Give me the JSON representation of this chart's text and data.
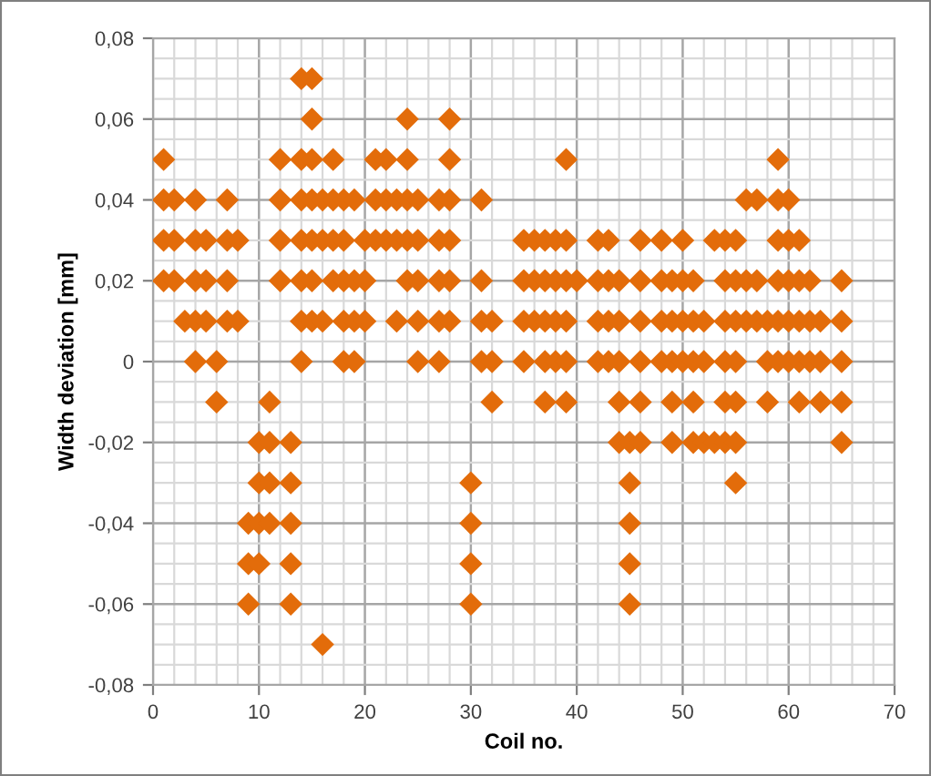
{
  "chart_data": {
    "type": "scatter",
    "xlabel": "Coil no.",
    "ylabel": "Width deviation [mm]",
    "x": [
      14,
      15,
      15,
      24,
      28,
      1,
      12,
      14,
      15,
      17,
      21,
      22,
      24,
      28,
      39,
      59,
      1,
      2,
      4,
      7,
      12,
      14,
      15,
      16,
      17,
      18,
      19,
      21,
      22,
      23,
      24,
      25,
      27,
      28,
      31,
      56,
      57,
      59,
      60,
      1,
      2,
      4,
      5,
      7,
      8,
      12,
      14,
      15,
      16,
      17,
      18,
      20,
      21,
      22,
      23,
      24,
      25,
      27,
      28,
      35,
      36,
      37,
      38,
      39,
      42,
      43,
      46,
      48,
      50,
      53,
      54,
      55,
      59,
      60,
      61,
      1,
      2,
      4,
      5,
      7,
      12,
      14,
      15,
      17,
      18,
      19,
      20,
      24,
      25,
      27,
      28,
      31,
      35,
      36,
      37,
      38,
      39,
      40,
      42,
      43,
      44,
      46,
      48,
      49,
      50,
      51,
      54,
      55,
      56,
      57,
      59,
      60,
      61,
      62,
      65,
      3,
      4,
      5,
      7,
      8,
      14,
      15,
      16,
      18,
      19,
      20,
      23,
      25,
      27,
      28,
      31,
      32,
      35,
      36,
      37,
      38,
      39,
      42,
      43,
      44,
      46,
      48,
      49,
      50,
      51,
      52,
      54,
      55,
      56,
      57,
      58,
      59,
      60,
      61,
      62,
      63,
      65,
      4,
      6,
      14,
      18,
      19,
      25,
      27,
      31,
      32,
      35,
      37,
      38,
      39,
      42,
      43,
      44,
      46,
      48,
      49,
      50,
      51,
      52,
      54,
      55,
      58,
      59,
      60,
      61,
      62,
      63,
      65,
      6,
      11,
      32,
      37,
      39,
      44,
      46,
      49,
      51,
      54,
      55,
      58,
      61,
      63,
      65,
      10,
      11,
      13,
      44,
      45,
      46,
      49,
      51,
      52,
      53,
      54,
      55,
      65,
      10,
      11,
      13,
      30,
      45,
      55,
      9,
      10,
      11,
      13,
      30,
      45,
      9,
      10,
      13,
      30,
      45,
      9,
      13,
      30,
      45,
      16
    ],
    "series": [
      {
        "color": "#e36c0a",
        "values": [
          0.07,
          0.07,
          0.06,
          0.06,
          0.06,
          0.05,
          0.05,
          0.05,
          0.05,
          0.05,
          0.05,
          0.05,
          0.05,
          0.05,
          0.05,
          0.05,
          0.04,
          0.04,
          0.04,
          0.04,
          0.04,
          0.04,
          0.04,
          0.04,
          0.04,
          0.04,
          0.04,
          0.04,
          0.04,
          0.04,
          0.04,
          0.04,
          0.04,
          0.04,
          0.04,
          0.04,
          0.04,
          0.04,
          0.04,
          0.03,
          0.03,
          0.03,
          0.03,
          0.03,
          0.03,
          0.03,
          0.03,
          0.03,
          0.03,
          0.03,
          0.03,
          0.03,
          0.03,
          0.03,
          0.03,
          0.03,
          0.03,
          0.03,
          0.03,
          0.03,
          0.03,
          0.03,
          0.03,
          0.03,
          0.03,
          0.03,
          0.03,
          0.03,
          0.03,
          0.03,
          0.03,
          0.03,
          0.03,
          0.03,
          0.03,
          0.02,
          0.02,
          0.02,
          0.02,
          0.02,
          0.02,
          0.02,
          0.02,
          0.02,
          0.02,
          0.02,
          0.02,
          0.02,
          0.02,
          0.02,
          0.02,
          0.02,
          0.02,
          0.02,
          0.02,
          0.02,
          0.02,
          0.02,
          0.02,
          0.02,
          0.02,
          0.02,
          0.02,
          0.02,
          0.02,
          0.02,
          0.02,
          0.02,
          0.02,
          0.02,
          0.02,
          0.02,
          0.02,
          0.02,
          0.02,
          0.01,
          0.01,
          0.01,
          0.01,
          0.01,
          0.01,
          0.01,
          0.01,
          0.01,
          0.01,
          0.01,
          0.01,
          0.01,
          0.01,
          0.01,
          0.01,
          0.01,
          0.01,
          0.01,
          0.01,
          0.01,
          0.01,
          0.01,
          0.01,
          0.01,
          0.01,
          0.01,
          0.01,
          0.01,
          0.01,
          0.01,
          0.01,
          0.01,
          0.01,
          0.01,
          0.01,
          0.01,
          0.01,
          0.01,
          0.01,
          0.01,
          0.01,
          0,
          0,
          0,
          0,
          0,
          0,
          0,
          0,
          0,
          0,
          0,
          0,
          0,
          0,
          0,
          0,
          0,
          0,
          0,
          0,
          0,
          0,
          0,
          0,
          0,
          0,
          0,
          0,
          0,
          0,
          0,
          -0.01,
          -0.01,
          -0.01,
          -0.01,
          -0.01,
          -0.01,
          -0.01,
          -0.01,
          -0.01,
          -0.01,
          -0.01,
          -0.01,
          -0.01,
          -0.01,
          -0.01,
          -0.02,
          -0.02,
          -0.02,
          -0.02,
          -0.02,
          -0.02,
          -0.02,
          -0.02,
          -0.02,
          -0.02,
          -0.02,
          -0.02,
          -0.02,
          -0.03,
          -0.03,
          -0.03,
          -0.03,
          -0.03,
          -0.03,
          -0.04,
          -0.04,
          -0.04,
          -0.04,
          -0.04,
          -0.04,
          -0.05,
          -0.05,
          -0.05,
          -0.05,
          -0.05,
          -0.06,
          -0.06,
          -0.06,
          -0.06,
          -0.07
        ]
      }
    ],
    "marker": "diamond",
    "xlim": [
      0,
      70
    ],
    "xticks": [
      0,
      10,
      20,
      30,
      40,
      50,
      60,
      70
    ],
    "ylim": [
      -0.08,
      0.08
    ],
    "yticks": [
      {
        "value": -0.08,
        "label": "-0,08"
      },
      {
        "value": -0.06,
        "label": "-0,06"
      },
      {
        "value": -0.04,
        "label": "-0,04"
      },
      {
        "value": -0.02,
        "label": "-0,02"
      },
      {
        "value": 0,
        "label": "0"
      },
      {
        "value": 0.02,
        "label": "0,02"
      },
      {
        "value": 0.04,
        "label": "0,04"
      },
      {
        "value": 0.06,
        "label": "0,06"
      },
      {
        "value": 0.08,
        "label": "0,08"
      }
    ],
    "grid": true
  }
}
